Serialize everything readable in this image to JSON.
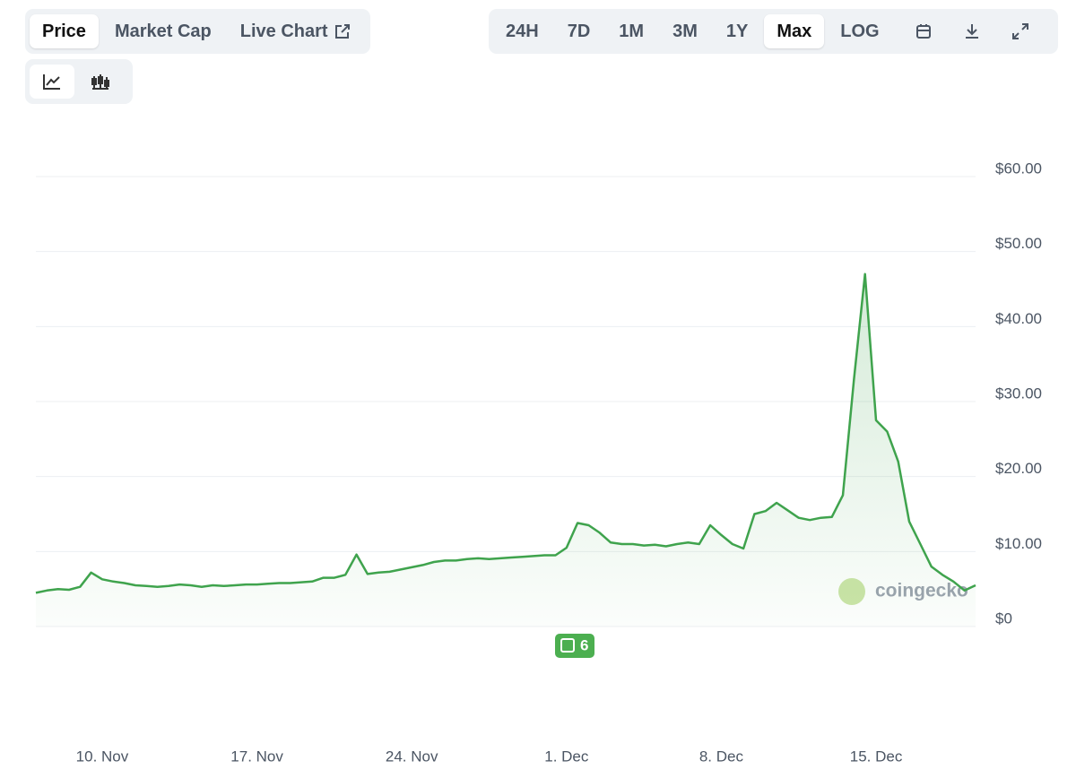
{
  "tabs": [
    "Price",
    "Market Cap",
    "Live Chart"
  ],
  "ranges": [
    "24H",
    "7D",
    "1M",
    "3M",
    "1Y",
    "Max",
    "LOG"
  ],
  "news_count": 6,
  "watermark": "coingecko",
  "chart_data": {
    "type": "line",
    "categories": [
      null,
      null,
      null,
      null,
      null,
      null,
      "10. Nov",
      null,
      null,
      null,
      null,
      null,
      null,
      null,
      null,
      null,
      null,
      null,
      null,
      null,
      "17. Nov",
      null,
      null,
      null,
      null,
      null,
      null,
      null,
      null,
      null,
      null,
      null,
      null,
      null,
      "24. Nov",
      null,
      null,
      null,
      null,
      null,
      null,
      null,
      null,
      null,
      null,
      null,
      null,
      null,
      "1. Dec",
      null,
      null,
      null,
      null,
      null,
      null,
      null,
      null,
      null,
      null,
      null,
      null,
      null,
      "8. Dec",
      null,
      null,
      null,
      null,
      null,
      null,
      null,
      null,
      null,
      null,
      null,
      null,
      null,
      "15. Dec",
      null,
      null,
      null,
      null,
      null,
      null,
      null,
      null,
      null
    ],
    "series": [
      {
        "name": "Price",
        "color": "#3fa34d",
        "values": [
          4.5,
          4.8,
          5.0,
          4.9,
          5.3,
          7.2,
          6.3,
          6.0,
          5.8,
          5.5,
          5.4,
          5.3,
          5.4,
          5.6,
          5.5,
          5.3,
          5.5,
          5.4,
          5.5,
          5.6,
          5.6,
          5.7,
          5.8,
          5.8,
          5.9,
          6.0,
          6.5,
          6.5,
          6.9,
          9.6,
          7.0,
          7.2,
          7.3,
          7.6,
          7.9,
          8.2,
          8.6,
          8.8,
          8.8,
          9.0,
          9.1,
          9.0,
          9.1,
          9.2,
          9.3,
          9.4,
          9.5,
          9.5,
          10.5,
          13.8,
          13.5,
          12.5,
          11.2,
          11.0,
          11.0,
          10.8,
          10.9,
          10.7,
          11.0,
          11.2,
          11.0,
          13.5,
          12.2,
          11.0,
          10.4,
          15.0,
          15.4,
          16.5,
          15.5,
          14.5,
          14.2,
          14.5,
          14.6,
          17.5,
          33.0,
          47.0,
          27.5,
          26.0,
          22.0,
          14.0,
          11.0,
          8.0,
          6.9,
          6.0,
          4.8,
          5.5
        ]
      }
    ],
    "ylim": [
      0,
      60
    ],
    "yticks": [
      {
        "value": 0,
        "label": "$0"
      },
      {
        "value": 10,
        "label": "$10.00"
      },
      {
        "value": 20,
        "label": "$20.00"
      },
      {
        "value": 30,
        "label": "$30.00"
      },
      {
        "value": 40,
        "label": "$40.00"
      },
      {
        "value": 50,
        "label": "$50.00"
      },
      {
        "value": 60,
        "label": "$60.00"
      }
    ],
    "grid": true
  }
}
